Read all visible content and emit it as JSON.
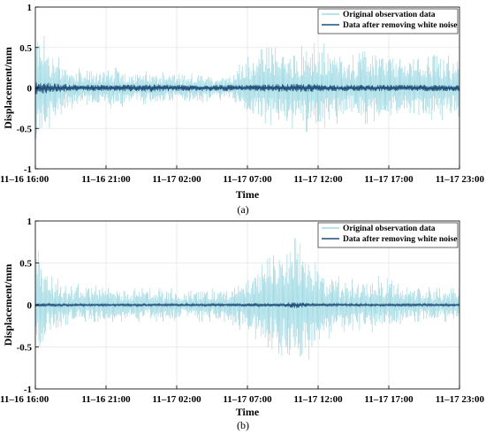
{
  "chart_data": [
    {
      "type": "line",
      "caption": "(a)",
      "xlabel": "Time",
      "ylabel": "Displacement/mm",
      "ylim": [
        -1,
        1
      ],
      "yticks": [
        "1",
        "0.5",
        "0",
        "-0.5",
        "-1"
      ],
      "xlim": [
        "11-16 16:00",
        "11-17 23:00"
      ],
      "xticks": [
        "11–16 16:00",
        "11–16 21:00",
        "11–17 02:00",
        "11–17 07:00",
        "11–17 12:00",
        "11–17 17:00",
        "11–17 23:00"
      ],
      "grid": true,
      "legend_position": "top-right",
      "series": [
        {
          "name": "Original observation data",
          "color": "#8fd3df",
          "envelope_hours": [
            0,
            1,
            2,
            3,
            4,
            5,
            6,
            7,
            8,
            9,
            10,
            11,
            12,
            13,
            14,
            15,
            16,
            17,
            18,
            19,
            20,
            21,
            22,
            23,
            24,
            25,
            26,
            27,
            28,
            29,
            30,
            31
          ],
          "envelope_upper": [
            0.8,
            0.55,
            0.3,
            0.25,
            0.2,
            0.25,
            0.25,
            0.2,
            0.2,
            0.2,
            0.2,
            0.15,
            0.2,
            0.15,
            0.15,
            0.3,
            0.45,
            0.5,
            0.5,
            0.5,
            0.55,
            0.55,
            0.5,
            0.4,
            0.45,
            0.5,
            0.45,
            0.4,
            0.45,
            0.5,
            0.4,
            0.4
          ],
          "envelope_lower": [
            -0.75,
            -0.5,
            -0.3,
            -0.25,
            -0.2,
            -0.25,
            -0.25,
            -0.2,
            -0.2,
            -0.2,
            -0.2,
            -0.15,
            -0.2,
            -0.15,
            -0.15,
            -0.3,
            -0.4,
            -0.45,
            -0.5,
            -0.5,
            -0.55,
            -0.5,
            -0.45,
            -0.35,
            -0.45,
            -0.4,
            -0.4,
            -0.35,
            -0.4,
            -0.4,
            -0.4,
            -0.35
          ]
        },
        {
          "name": "Data after removing  white noise",
          "color": "#1f4e79",
          "envelope_hours": [
            0,
            2,
            4,
            6,
            8,
            10,
            12,
            14,
            16,
            18,
            20,
            22,
            24,
            26,
            28,
            30,
            31
          ],
          "envelope_upper": [
            0.08,
            0.05,
            0.04,
            0.04,
            0.05,
            0.04,
            0.04,
            0.04,
            0.04,
            0.05,
            0.05,
            0.04,
            0.04,
            0.04,
            0.04,
            0.04,
            0.04
          ],
          "envelope_lower": [
            -0.08,
            -0.05,
            -0.04,
            -0.04,
            -0.05,
            -0.04,
            -0.04,
            -0.04,
            -0.04,
            -0.05,
            -0.05,
            -0.04,
            -0.04,
            -0.04,
            -0.04,
            -0.04,
            -0.04
          ]
        }
      ]
    },
    {
      "type": "line",
      "caption": "(b)",
      "xlabel": "Time",
      "ylabel": "Displacement/mm",
      "ylim": [
        -1,
        1
      ],
      "yticks": [
        "1",
        "0.5",
        "0",
        "-0.5",
        "-1"
      ],
      "xlim": [
        "11-16 16:00",
        "11-17 23:00"
      ],
      "xticks": [
        "11–16 16:00",
        "11–16 21:00",
        "11–17 02:00",
        "11–17 07:00",
        "11–17 12:00",
        "11–17 17:00",
        "11–17 23:00"
      ],
      "grid": true,
      "legend_position": "top-right",
      "series": [
        {
          "name": "Original observation data",
          "color": "#8fd3df",
          "envelope_hours": [
            0,
            1,
            2,
            3,
            4,
            5,
            6,
            7,
            8,
            9,
            10,
            11,
            12,
            13,
            14,
            15,
            16,
            17,
            18,
            19,
            20,
            21,
            22,
            23,
            24,
            25,
            26,
            27,
            28,
            29,
            30,
            31
          ],
          "envelope_upper": [
            0.9,
            0.35,
            0.3,
            0.25,
            0.25,
            0.2,
            0.2,
            0.2,
            0.2,
            0.2,
            0.2,
            0.15,
            0.2,
            0.2,
            0.2,
            0.3,
            0.4,
            0.55,
            0.65,
            0.8,
            0.6,
            0.4,
            0.35,
            0.3,
            0.35,
            0.35,
            0.3,
            0.2,
            0.25,
            0.2,
            0.2,
            0.2
          ],
          "envelope_lower": [
            -0.8,
            -0.3,
            -0.25,
            -0.2,
            -0.2,
            -0.2,
            -0.2,
            -0.2,
            -0.2,
            -0.2,
            -0.2,
            -0.15,
            -0.2,
            -0.2,
            -0.2,
            -0.3,
            -0.4,
            -0.5,
            -0.6,
            -0.85,
            -0.65,
            -0.45,
            -0.35,
            -0.3,
            -0.3,
            -0.35,
            -0.3,
            -0.2,
            -0.2,
            -0.2,
            -0.2,
            -0.2
          ]
        },
        {
          "name": "Data after removing  white noise",
          "color": "#1f4e79",
          "envelope_hours": [
            0,
            2,
            4,
            6,
            8,
            10,
            12,
            14,
            16,
            18,
            19,
            20,
            22,
            24,
            26,
            28,
            30,
            31
          ],
          "envelope_upper": [
            0.02,
            0.015,
            0.015,
            0.015,
            0.015,
            0.015,
            0.015,
            0.015,
            0.02,
            0.02,
            0.04,
            0.02,
            0.015,
            0.015,
            0.015,
            0.015,
            0.015,
            0.015
          ],
          "envelope_lower": [
            -0.02,
            -0.015,
            -0.015,
            -0.015,
            -0.015,
            -0.015,
            -0.015,
            -0.015,
            -0.02,
            -0.02,
            -0.04,
            -0.02,
            -0.015,
            -0.015,
            -0.015,
            -0.015,
            -0.015,
            -0.015
          ]
        }
      ]
    }
  ]
}
